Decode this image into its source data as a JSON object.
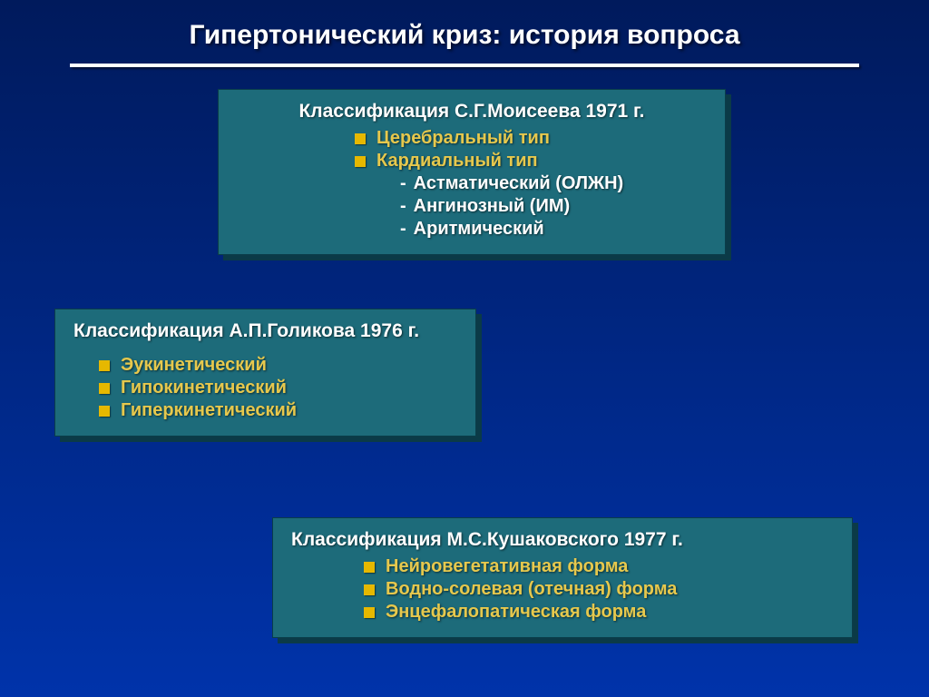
{
  "title": "Гипертонический криз: история вопроса",
  "panel1": {
    "heading": "Классификация С.Г.Моисеева 1971 г.",
    "b1": "Церебральный тип",
    "b2": "Кардиальный тип",
    "s1": "Астматический (ОЛЖН)",
    "s2": "Ангинозный (ИМ)",
    "s3": "Аритмический"
  },
  "panel2": {
    "heading": "Классификация А.П.Голикова 1976 г.",
    "b1": "Эукинетический",
    "b2": "Гипокинетический",
    "b3": "Гиперкинетический"
  },
  "panel3": {
    "heading": "Классификация М.С.Кушаковского  1977 г.",
    "b1": "Нейровегетативная форма",
    "b2": "Водно-солевая (отечная) форма",
    "b3": "Энцефалопатическая форма"
  },
  "style": {
    "background_gradient": [
      "#001a5c",
      "#0033aa"
    ],
    "panel_color": "#1d6b7a",
    "panel_shadow": "#0b3a47",
    "title_color": "#ffffff",
    "bullet_square_color": "#e6b800",
    "bullet_text_color": "#e6c84d",
    "sub_text_color": "#ffffff",
    "title_fontsize": 30,
    "heading_fontsize": 21,
    "body_fontsize": 20
  }
}
